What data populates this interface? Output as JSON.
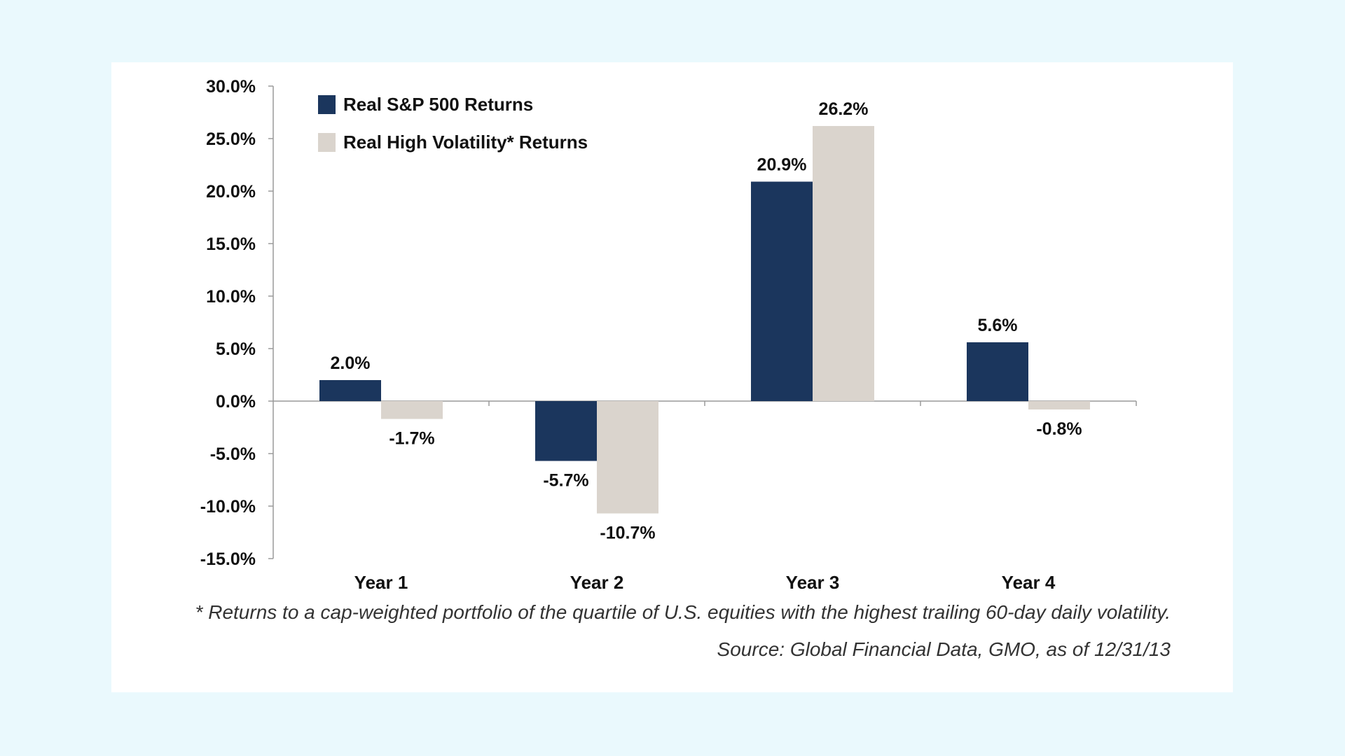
{
  "chart_data": {
    "type": "bar",
    "title": "",
    "xlabel": "",
    "ylabel": "",
    "categories": [
      "Year 1",
      "Year 2",
      "Year 3",
      "Year 4"
    ],
    "series": [
      {
        "name": "Real S&P 500 Returns",
        "values": [
          2.0,
          -5.7,
          20.9,
          5.6
        ],
        "color": "#1b365d"
      },
      {
        "name": "Real High Volatility* Returns",
        "values": [
          -1.7,
          -10.7,
          26.2,
          -0.8
        ],
        "color": "#dad4cd"
      }
    ],
    "data_labels": [
      [
        "2.0%",
        "-5.7%",
        "20.9%",
        "5.6%"
      ],
      [
        "-1.7%",
        "-10.7%",
        "26.2%",
        "-0.8%"
      ]
    ],
    "ylim": [
      -15,
      30
    ],
    "y_ticks": [
      30,
      25,
      20,
      15,
      10,
      5,
      0,
      -5,
      -10,
      -15
    ],
    "y_tick_labels": [
      "30.0%",
      "25.0%",
      "20.0%",
      "15.0%",
      "10.0%",
      "5.0%",
      "0.0%",
      "-5.0%",
      "-10.0%",
      "-15.0%"
    ],
    "legend_position": "top-left",
    "grid": false
  },
  "footnote": "* Returns to a cap-weighted portfolio of the quartile of U.S. equities with the highest trailing 60-day daily volatility.",
  "source": "Source: Global Financial Data, GMO, as of 12/31/13"
}
